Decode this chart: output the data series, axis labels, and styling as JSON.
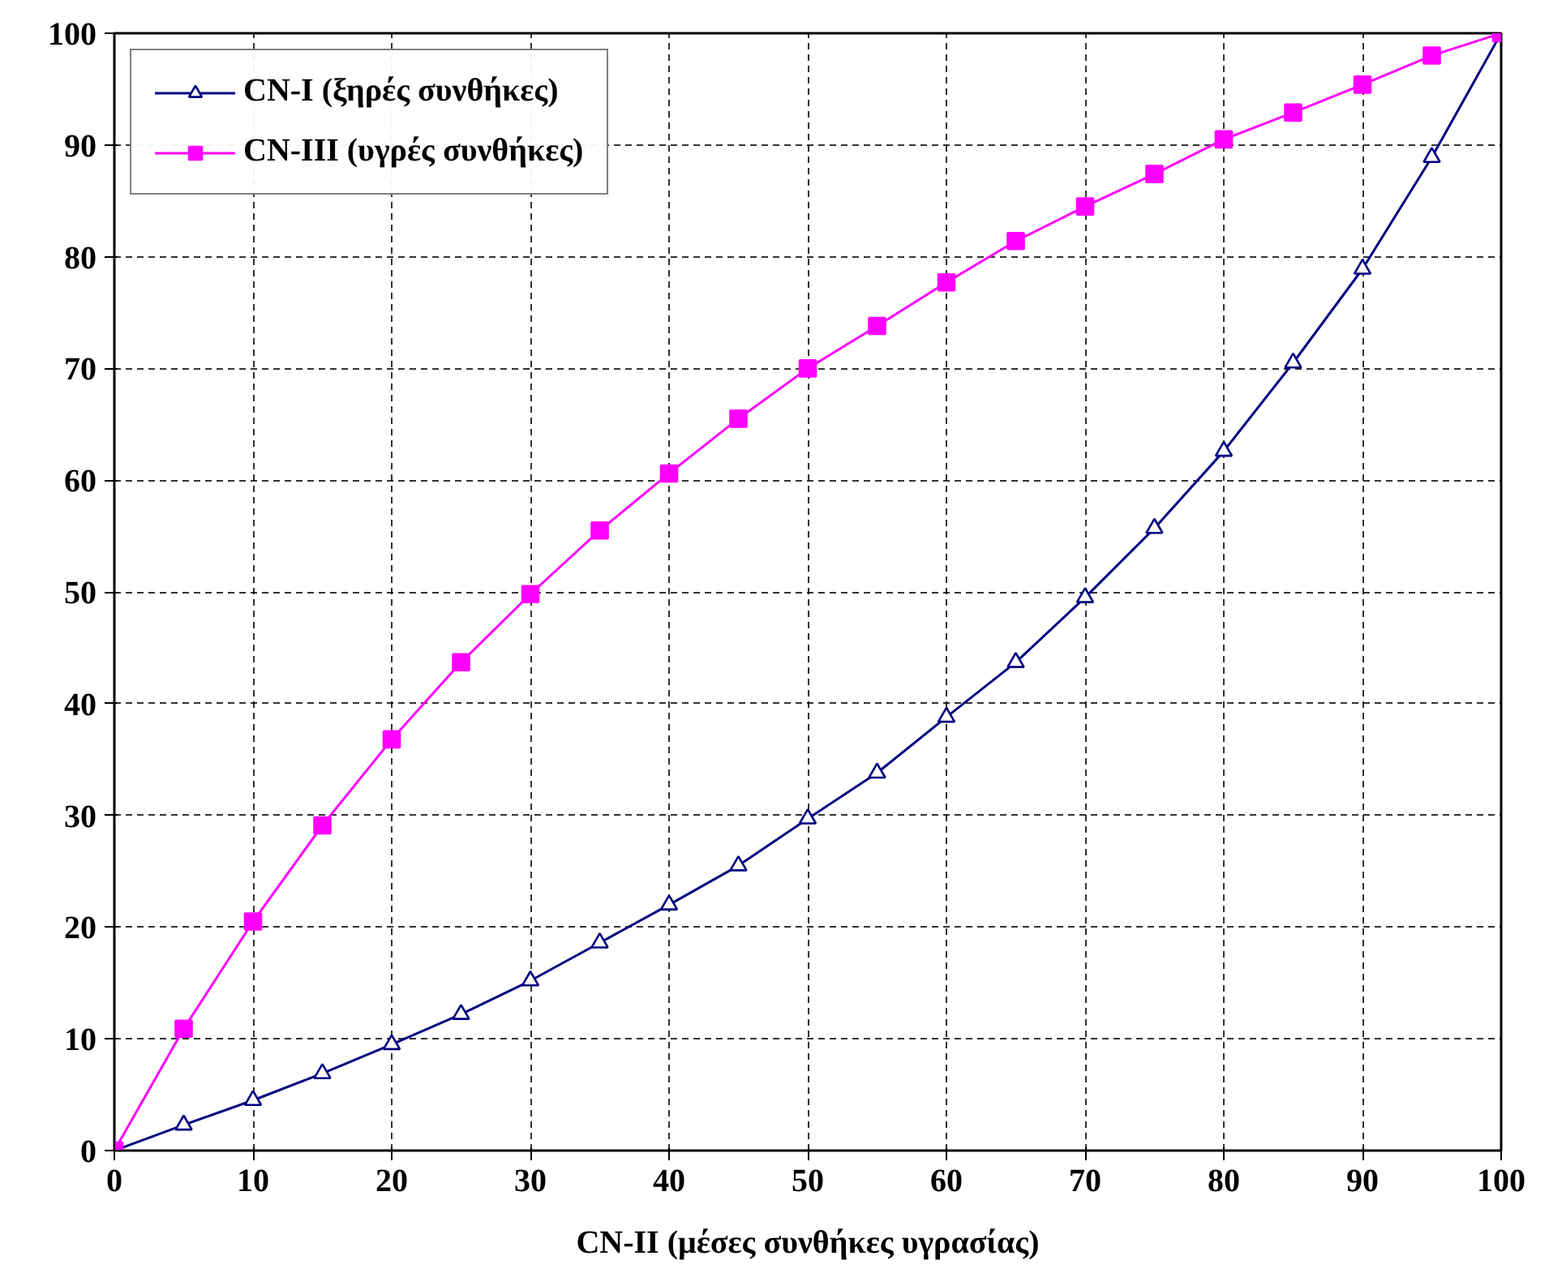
{
  "chart_data": {
    "type": "line",
    "xlabel": "CN-II (μέσες συνθήκες υγρασίας)",
    "x": [
      0,
      5,
      10,
      15,
      20,
      25,
      30,
      35,
      40,
      45,
      50,
      55,
      60,
      65,
      70,
      75,
      80,
      85,
      90,
      95,
      100
    ],
    "series": [
      {
        "name": "CN-I (ξηρές συνθήκες)",
        "color": "#000080",
        "marker": "triangle",
        "values": [
          0,
          2.3,
          4.5,
          6.9,
          9.5,
          12.2,
          15.2,
          18.6,
          22.0,
          25.5,
          29.7,
          33.8,
          38.8,
          43.7,
          49.5,
          55.7,
          62.6,
          70.5,
          78.9,
          88.9,
          100
        ]
      },
      {
        "name": "CN-III (υγρές συνθήκες)",
        "color": "#ff00ff",
        "marker": "square",
        "values": [
          0,
          10.9,
          20.5,
          29.1,
          36.8,
          43.7,
          49.8,
          55.5,
          60.6,
          65.5,
          70.0,
          73.8,
          77.7,
          81.4,
          84.5,
          87.4,
          90.5,
          92.9,
          95.4,
          98.0,
          100
        ]
      }
    ],
    "xlim": [
      0,
      100
    ],
    "ylim": [
      0,
      100
    ],
    "xticks": [
      0,
      10,
      20,
      30,
      40,
      50,
      60,
      70,
      80,
      90,
      100
    ],
    "yticks": [
      0,
      10,
      20,
      30,
      40,
      50,
      60,
      70,
      80,
      90,
      100
    ],
    "grid": true,
    "legend": "top left",
    "line_style": "solid"
  }
}
